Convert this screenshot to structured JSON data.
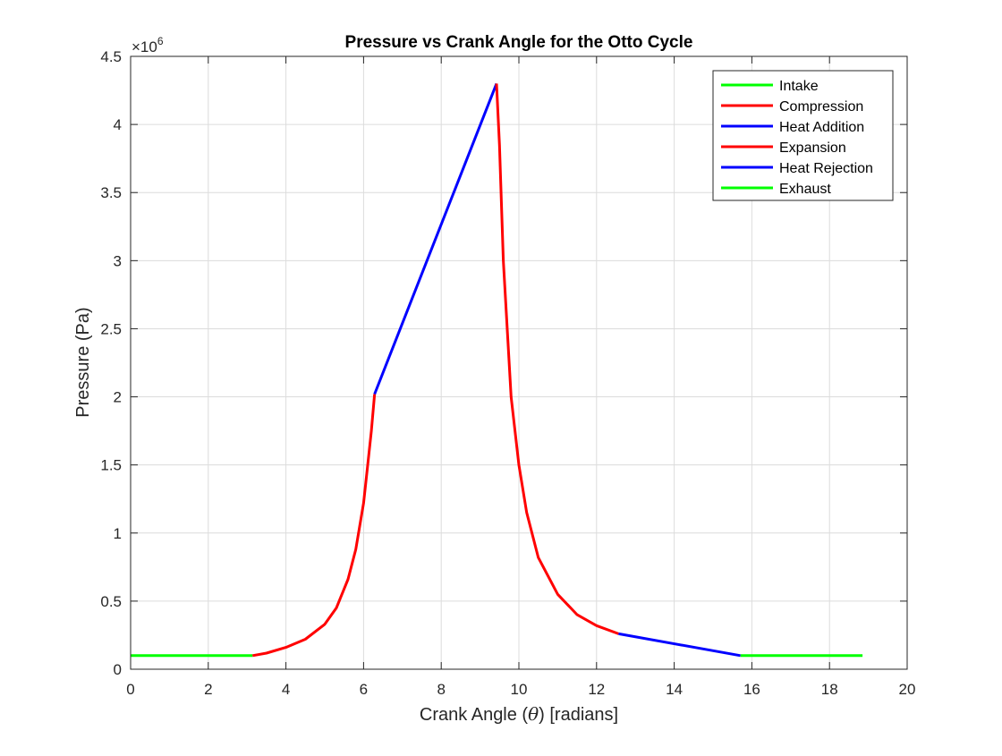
{
  "chart_data": {
    "type": "line",
    "title": "Pressure vs Crank Angle for the Otto Cycle",
    "xlabel_prefix": "Crank Angle (",
    "xlabel_symbol": "θ",
    "xlabel_suffix": ") [radians]",
    "ylabel": "Pressure (Pa)",
    "y_exponent_base": "×10",
    "y_exponent_power": "6",
    "xlim": [
      0,
      20
    ],
    "ylim": [
      0,
      4.5
    ],
    "xticks": [
      0,
      2,
      4,
      6,
      8,
      10,
      12,
      14,
      16,
      18,
      20
    ],
    "yticks": [
      0,
      0.5,
      1,
      1.5,
      2,
      2.5,
      3,
      3.5,
      4,
      4.5
    ],
    "xtick_labels": [
      "0",
      "2",
      "4",
      "6",
      "8",
      "10",
      "12",
      "14",
      "16",
      "18",
      "20"
    ],
    "ytick_labels": [
      "0",
      "0.5",
      "1",
      "1.5",
      "2",
      "2.5",
      "3",
      "3.5",
      "4",
      "4.5"
    ],
    "grid": true,
    "legend_position": "top-right",
    "series": [
      {
        "name": "Intake",
        "color": "#00ff00",
        "x": [
          0,
          3.1416
        ],
        "y": [
          0.1,
          0.1
        ]
      },
      {
        "name": "Compression",
        "color": "#ff0000",
        "x": [
          3.1416,
          3.5,
          4.0,
          4.5,
          5.0,
          5.3,
          5.6,
          5.8,
          6.0,
          6.1,
          6.2,
          6.283
        ],
        "y": [
          0.1,
          0.118,
          0.16,
          0.22,
          0.33,
          0.45,
          0.66,
          0.88,
          1.22,
          1.48,
          1.75,
          2.02
        ]
      },
      {
        "name": "Heat Addition",
        "color": "#0000ff",
        "x": [
          6.283,
          9.4248
        ],
        "y": [
          2.02,
          4.3
        ]
      },
      {
        "name": "Expansion",
        "color": "#ff0000",
        "x": [
          9.4248,
          9.5,
          9.6,
          9.8,
          10.0,
          10.2,
          10.5,
          11.0,
          11.5,
          12.0,
          12.566
        ],
        "y": [
          4.3,
          3.85,
          3.0,
          2.0,
          1.5,
          1.15,
          0.82,
          0.55,
          0.4,
          0.32,
          0.26
        ]
      },
      {
        "name": "Heat Rejection",
        "color": "#0000ff",
        "x": [
          12.566,
          15.708
        ],
        "y": [
          0.26,
          0.1
        ]
      },
      {
        "name": "Exhaust",
        "color": "#00ff00",
        "x": [
          15.708,
          18.85
        ],
        "y": [
          0.1,
          0.1
        ]
      }
    ]
  }
}
